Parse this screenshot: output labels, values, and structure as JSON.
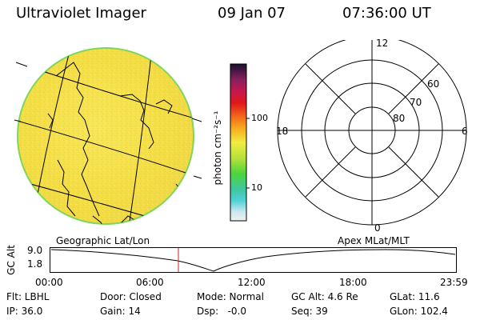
{
  "header": {
    "title": "Ultraviolet Imager",
    "date": "09 Jan 07",
    "time": "07:36:00 UT"
  },
  "colorbar": {
    "unit_label": "photon cm⁻²s⁻¹",
    "ticks": [
      "100",
      "10"
    ]
  },
  "polar": {
    "clock_labels": [
      "12",
      "18",
      "6",
      "0"
    ],
    "lat_labels": [
      "60",
      "70",
      "80"
    ]
  },
  "captions": {
    "left": "Geographic Lat/Lon",
    "right": "Apex MLat/MLT"
  },
  "timeline": {
    "ylabel": "GC Alt",
    "ymax": "9.0",
    "ymin": "1.8",
    "ticks": [
      "00:00",
      "06:00",
      "12:00",
      "18:00",
      "23:59"
    ],
    "marker_time": "07:36"
  },
  "info": {
    "row1": {
      "flt": "Flt: LBHL",
      "door": "Door: Closed",
      "mode": "Mode: Normal",
      "gcalt": "GC Alt: 4.6 Re",
      "glat": "GLat: 11.6"
    },
    "row2": {
      "ip": "IP: 36.0",
      "gain": "Gain: 14",
      "dsp": "Dsp:   -0.0",
      "seq": "Seq: 39",
      "glon": "GLon: 102.4"
    }
  },
  "colors": {
    "disk": "#f4e24a",
    "disk_edge": "#7fd65a",
    "marker": "#cc2222"
  }
}
